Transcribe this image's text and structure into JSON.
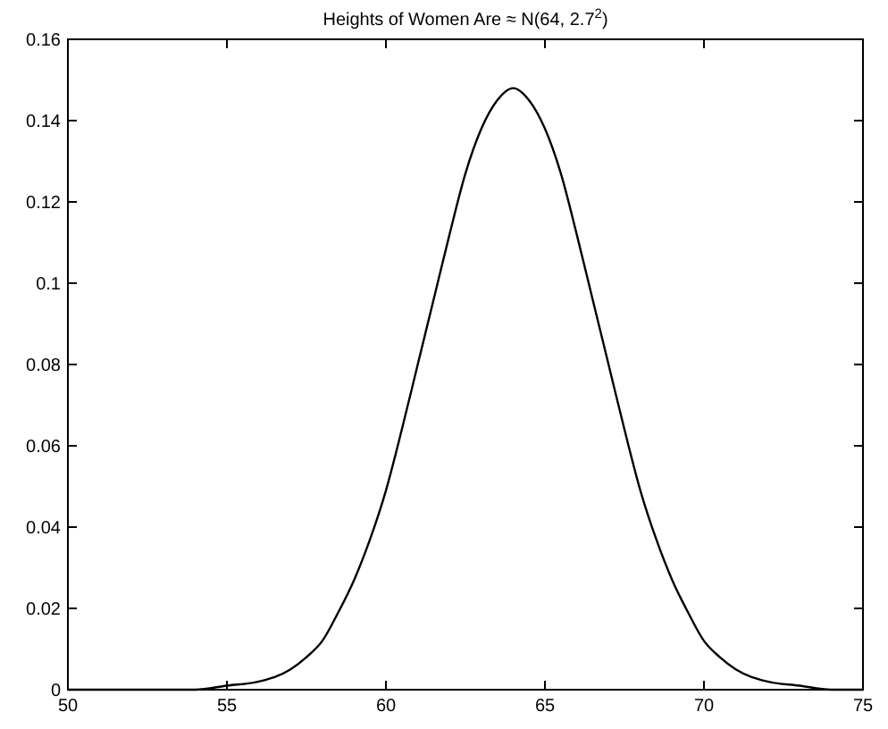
{
  "chart_data": {
    "type": "line",
    "title": "Heights of Women Are ≈ N(64, 2.7$^{2}$)",
    "x": [
      50,
      52,
      54,
      55,
      56,
      57,
      57.5,
      58,
      58.5,
      59,
      59.5,
      60,
      60.5,
      61,
      61.5,
      62,
      62.5,
      63,
      63.5,
      64,
      64.5,
      65,
      65.5,
      66,
      66.5,
      67,
      67.5,
      68,
      68.5,
      69,
      69.5,
      70,
      70.5,
      71,
      72,
      73,
      74,
      75
    ],
    "series": [
      {
        "color": "#000000",
        "values": [
          0,
          0,
          0,
          0.001,
          0.002,
          0.005,
          0.008,
          0.012,
          0.019,
          0.027,
          0.037,
          0.049,
          0.064,
          0.08,
          0.096,
          0.112,
          0.127,
          0.138,
          0.145,
          0.148,
          0.145,
          0.138,
          0.127,
          0.112,
          0.096,
          0.08,
          0.064,
          0.049,
          0.037,
          0.027,
          0.019,
          0.012,
          0.008,
          0.005,
          0.002,
          0.001,
          0,
          0
        ]
      }
    ],
    "xlim": [
      50,
      75
    ],
    "xticks": [
      50,
      55,
      60,
      65,
      70,
      75
    ],
    "ylim": [
      0,
      0.16
    ],
    "yticks": [
      0,
      0.02,
      0.04,
      0.06,
      0.08,
      0.1,
      0.12,
      0.14,
      0.16
    ],
    "marker": "none",
    "line_style": "solid"
  }
}
